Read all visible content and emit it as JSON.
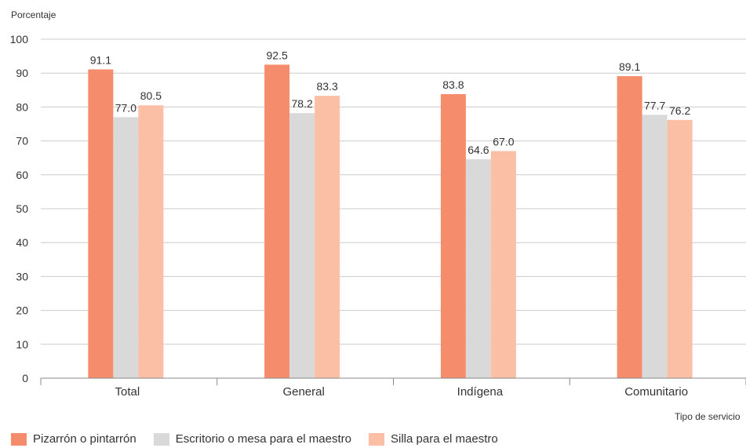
{
  "chart_data": {
    "type": "bar",
    "ylabel": "Porcentaje",
    "xlabel": "Tipo de servicio",
    "categories": [
      "Total",
      "General",
      "Indígena",
      "Comunitario"
    ],
    "ylim": [
      0,
      100
    ],
    "yticks": [
      0,
      10,
      20,
      30,
      40,
      50,
      60,
      70,
      80,
      90,
      100
    ],
    "grid": true,
    "legend_position": "bottom-left",
    "series": [
      {
        "name": "Pizarrón o pintarrón",
        "color": "#f58c6c",
        "values": [
          91.1,
          92.5,
          83.8,
          89.1
        ],
        "labels": [
          "91.1",
          "92.5",
          "83.8",
          "89.1"
        ]
      },
      {
        "name": "Escritorio o mesa para el maestro",
        "color": "#d9d9d9",
        "values": [
          77.0,
          78.2,
          64.6,
          77.7
        ],
        "labels": [
          "77.0",
          "78.2",
          "64.6",
          "77.7"
        ]
      },
      {
        "name": "Silla para el maestro",
        "color": "#fbbfa6",
        "values": [
          80.5,
          83.3,
          67.0,
          76.2
        ],
        "labels": [
          "80.5",
          "83.3",
          "67.0",
          "76.2"
        ]
      }
    ]
  }
}
